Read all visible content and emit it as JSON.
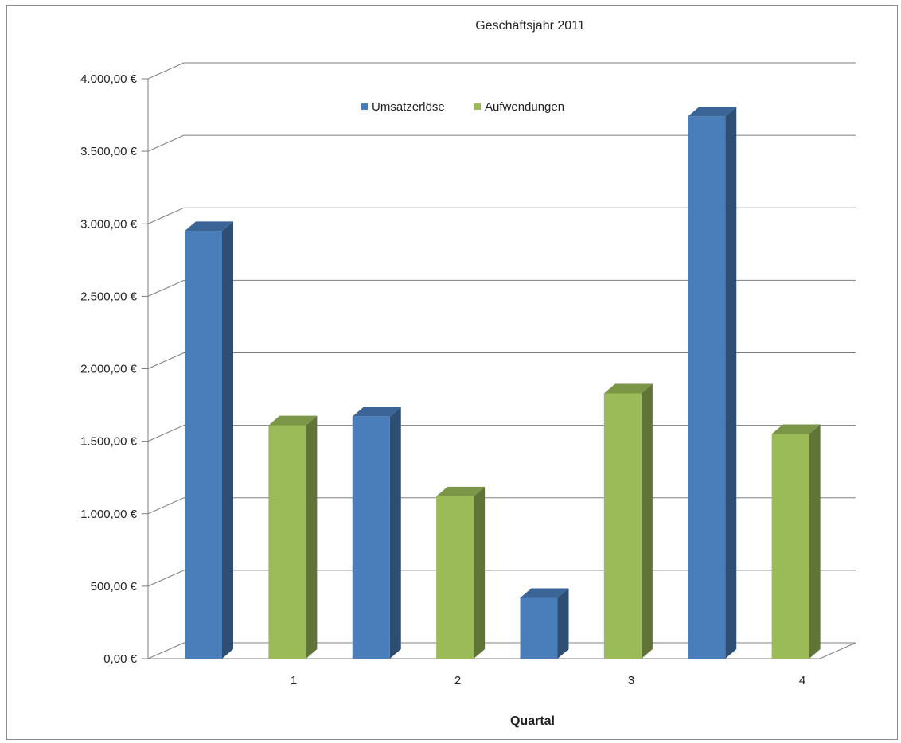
{
  "chart_data": {
    "type": "bar",
    "title": "Geschäftsjahr 2011",
    "xlabel": "Quartal",
    "ylabel": "",
    "categories": [
      "1",
      "2",
      "3",
      "4"
    ],
    "series": [
      {
        "name": "Umsatzerlöse",
        "color": "#4a7ebb",
        "values": [
          2950,
          1670,
          420,
          3740
        ]
      },
      {
        "name": "Aufwendungen",
        "color": "#9bbb59",
        "values": [
          1610,
          1120,
          1830,
          1550
        ]
      }
    ],
    "ylim": [
      0,
      4000
    ],
    "yticks": [
      0,
      500,
      1000,
      1500,
      2000,
      2500,
      3000,
      3500,
      4000
    ],
    "ytick_labels": [
      "0,00 €",
      "500,00 €",
      "1.000,00 €",
      "1.500,00 €",
      "2.000,00 €",
      "2.500,00 €",
      "3.000,00 €",
      "3.500,00 €",
      "4.000,00 €"
    ],
    "grid": true,
    "legend_position": "top-center"
  }
}
